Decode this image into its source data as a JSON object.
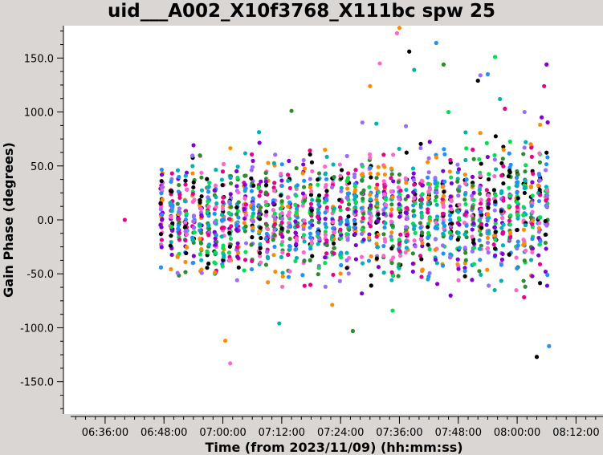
{
  "chart_data": {
    "type": "scatter",
    "title": "uid___A002_X10f3768_X111bc spw 25",
    "xlabel": "Time (from 2023/11/09) (hh:mm:ss)",
    "ylabel": "Gain Phase (degrees)",
    "xlim": [
      "06:27:30",
      "08:17:30"
    ],
    "ylim": [
      -180,
      180
    ],
    "x_ticks": [
      "06:36:00",
      "06:48:00",
      "07:00:00",
      "07:12:00",
      "07:24:00",
      "07:36:00",
      "07:48:00",
      "08:00:00",
      "08:12:00"
    ],
    "y_ticks": [
      150.0,
      100.0,
      50.0,
      0.0,
      -50.0,
      -100.0,
      -150.0
    ],
    "y_tick_labels": [
      "150.0",
      "100.0",
      "50.0",
      "0.0",
      "-50.0",
      "-100.0",
      "-150.0"
    ],
    "grid": false,
    "legend": "none",
    "series_colors": [
      "#000000",
      "#e8008c",
      "#00e050",
      "#1e90ff",
      "#ff8c00",
      "#9c6bff",
      "#00b3b3",
      "#ff66cc",
      "#7e00d6",
      "#2e8b2e"
    ],
    "scan_times": [
      "06:40:00",
      "06:47:30",
      "06:49:30",
      "06:51:00",
      "06:52:30",
      "06:54:00",
      "06:55:30",
      "06:57:00",
      "06:58:30",
      "07:00:00",
      "07:01:30",
      "07:03:00",
      "07:04:30",
      "07:06:00",
      "07:07:30",
      "07:09:00",
      "07:10:30",
      "07:12:00",
      "07:13:30",
      "07:15:00",
      "07:16:30",
      "07:18:00",
      "07:19:30",
      "07:21:00",
      "07:22:30",
      "07:24:00",
      "07:25:30",
      "07:27:00",
      "07:28:30",
      "07:30:00",
      "07:31:30",
      "07:33:00",
      "07:34:30",
      "07:36:00",
      "07:37:30",
      "07:39:00",
      "07:40:30",
      "07:42:00",
      "07:43:30",
      "07:45:00",
      "07:46:30",
      "07:48:00",
      "07:49:30",
      "07:51:00",
      "07:52:30",
      "07:54:00",
      "07:55:30",
      "07:57:00",
      "07:58:30",
      "08:00:00",
      "08:01:30",
      "08:03:00",
      "08:04:30",
      "08:06:00"
    ],
    "phase_spread_deg": {
      "low": -130,
      "high": 178
    },
    "outliers": [
      {
        "x": "06:40:00",
        "y": 0
      },
      {
        "x": "07:36:00",
        "y": 178
      },
      {
        "x": "07:35:30",
        "y": 173
      },
      {
        "x": "07:38:00",
        "y": 156
      },
      {
        "x": "07:43:30",
        "y": 164
      },
      {
        "x": "07:39:00",
        "y": 139
      },
      {
        "x": "07:45:00",
        "y": 144
      },
      {
        "x": "07:55:30",
        "y": 151
      },
      {
        "x": "07:52:30",
        "y": 134
      },
      {
        "x": "08:06:00",
        "y": 144
      },
      {
        "x": "08:05:30",
        "y": 124
      },
      {
        "x": "07:30:00",
        "y": 124
      },
      {
        "x": "07:32:00",
        "y": 145
      },
      {
        "x": "07:52:00",
        "y": 129
      },
      {
        "x": "07:54:00",
        "y": 135
      },
      {
        "x": "07:56:30",
        "y": 112
      },
      {
        "x": "07:14:00",
        "y": 101
      },
      {
        "x": "07:46:00",
        "y": 100
      },
      {
        "x": "08:01:30",
        "y": 100
      },
      {
        "x": "08:05:00",
        "y": 95
      },
      {
        "x": "07:57:30",
        "y": 103
      },
      {
        "x": "07:00:30",
        "y": -112
      },
      {
        "x": "07:01:30",
        "y": -133
      },
      {
        "x": "08:04:00",
        "y": -127
      },
      {
        "x": "08:06:30",
        "y": -117
      },
      {
        "x": "07:11:30",
        "y": -96
      },
      {
        "x": "07:26:30",
        "y": -103
      }
    ]
  }
}
